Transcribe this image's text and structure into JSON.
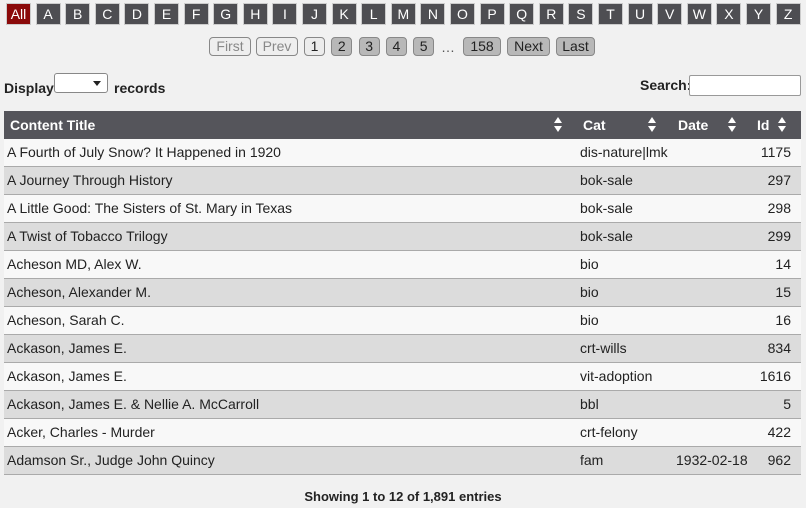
{
  "letters": [
    "All",
    "A",
    "B",
    "C",
    "D",
    "E",
    "F",
    "G",
    "H",
    "I",
    "J",
    "K",
    "L",
    "M",
    "N",
    "O",
    "P",
    "Q",
    "R",
    "S",
    "T",
    "U",
    "V",
    "W",
    "X",
    "Y",
    "Z"
  ],
  "pagination": {
    "first": "First",
    "prev": "Prev",
    "pages": [
      "1",
      "2",
      "3",
      "4",
      "5"
    ],
    "ellipsis": "…",
    "last_page": "158",
    "next": "Next",
    "last": "Last"
  },
  "controls": {
    "display_label": "Display",
    "records_label": "records",
    "search_label": "Search:"
  },
  "table": {
    "headers": [
      "Content Title",
      "Cat",
      "Date",
      "Id"
    ],
    "rows": [
      {
        "title": "A Fourth of July Snow? It Happened in 1920",
        "cat": "dis-nature|lmk",
        "id": 1175
      },
      {
        "title": "A Journey Through History",
        "cat": "bok-sale",
        "id": 297
      },
      {
        "title": "A Little Good: The Sisters of St. Mary in Texas",
        "cat": "bok-sale",
        "id": 298
      },
      {
        "title": "A Twist of Tobacco Trilogy",
        "cat": "bok-sale",
        "id": 299
      },
      {
        "title": "Acheson MD, Alex W.",
        "cat": "bio",
        "id": 14
      },
      {
        "title": "Acheson, Alexander M.",
        "cat": "bio",
        "id": 15
      },
      {
        "title": "Acheson, Sarah C.",
        "cat": "bio",
        "id": 16
      },
      {
        "title": "Ackason, James E.",
        "cat": "crt-wills",
        "id": 834
      },
      {
        "title": "Ackason, James E.",
        "cat": "vit-adoption",
        "id": 1616
      },
      {
        "title": "Ackason, James E. & Nellie A. McCarroll",
        "cat": "bbl",
        "id": 5
      },
      {
        "title": "Acker, Charles - Murder",
        "cat": "crt-felony",
        "id": 422
      },
      {
        "title": "Adamson Sr., Judge John Quincy",
        "cat": "fam",
        "date": "1932-02-18",
        "id": 962
      }
    ]
  },
  "footer": "Showing 1 to 12 of 1,891 entries"
}
